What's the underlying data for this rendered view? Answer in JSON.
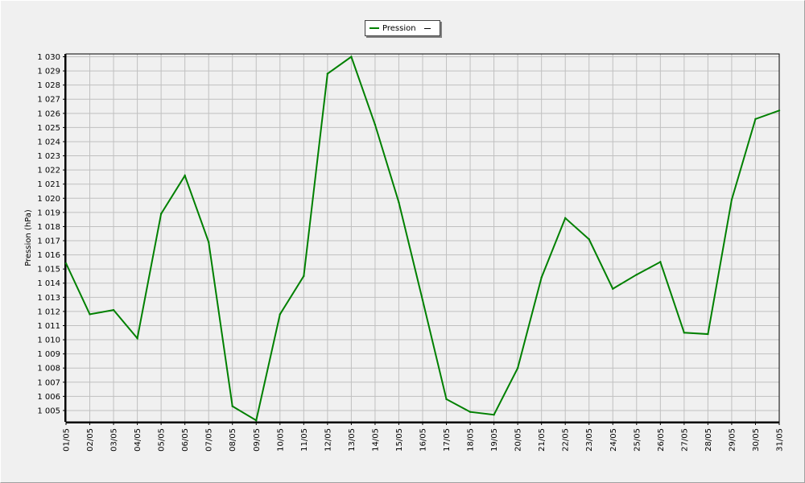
{
  "colors": {
    "background": "#f0f0f0",
    "plot_background": "#f0f0f0",
    "grid": "#c0c0c0",
    "series": "#008000",
    "axis": "#000000"
  },
  "legend": {
    "series_label": "Pression"
  },
  "chart_data": {
    "type": "line",
    "title": "",
    "xlabel": "",
    "ylabel": "Pression (hPa)",
    "ylim": [
      1004.2,
      1030.2
    ],
    "grid": true,
    "legend_position": "top-center",
    "categories": [
      "01/05",
      "02/05",
      "03/05",
      "04/05",
      "05/05",
      "06/05",
      "07/05",
      "08/05",
      "09/05",
      "10/05",
      "11/05",
      "12/05",
      "13/05",
      "14/05",
      "15/05",
      "16/05",
      "17/05",
      "18/05",
      "19/05",
      "20/05",
      "21/05",
      "22/05",
      "23/05",
      "24/05",
      "25/05",
      "26/05",
      "27/05",
      "28/05",
      "29/05",
      "30/05",
      "31/05"
    ],
    "y_ticks": [
      1005,
      1006,
      1007,
      1008,
      1009,
      1010,
      1011,
      1012,
      1013,
      1014,
      1015,
      1016,
      1017,
      1018,
      1019,
      1020,
      1021,
      1022,
      1023,
      1024,
      1025,
      1026,
      1027,
      1028,
      1029,
      1030
    ],
    "y_tick_labels": [
      "1 005",
      "1 006",
      "1 007",
      "1 008",
      "1 009",
      "1 010",
      "1 011",
      "1 012",
      "1 013",
      "1 014",
      "1 015",
      "1 016",
      "1 017",
      "1 018",
      "1 019",
      "1 020",
      "1 021",
      "1 022",
      "1 023",
      "1 024",
      "1 025",
      "1 026",
      "1 027",
      "1 028",
      "1 029",
      "1 030"
    ],
    "series": [
      {
        "name": "Pression",
        "values": [
          1015.4,
          1011.8,
          1012.1,
          1010.1,
          1018.9,
          1021.6,
          1016.9,
          1005.3,
          1004.3,
          1011.8,
          1014.5,
          1028.8,
          1030.0,
          1025.2,
          1019.7,
          1012.8,
          1005.8,
          1004.9,
          1004.7,
          1008.0,
          1014.4,
          1018.6,
          1017.1,
          1013.6,
          1014.6,
          1015.5,
          1010.5,
          1010.4,
          1019.9,
          1025.6,
          1026.2
        ]
      }
    ]
  }
}
